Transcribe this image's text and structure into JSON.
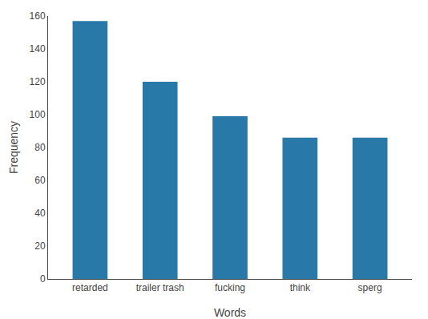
{
  "chart_data": {
    "type": "bar",
    "categories": [
      "retarded",
      "trailer trash",
      "fucking",
      "think",
      "sperg"
    ],
    "values": [
      157,
      120,
      99,
      86,
      86
    ],
    "color": "#2878a8",
    "xlabel": "Words",
    "ylabel": "Frequency",
    "ylim": [
      0,
      160
    ],
    "yticks": [
      0,
      20,
      40,
      60,
      80,
      100,
      120,
      140,
      160
    ],
    "grid": false
  }
}
